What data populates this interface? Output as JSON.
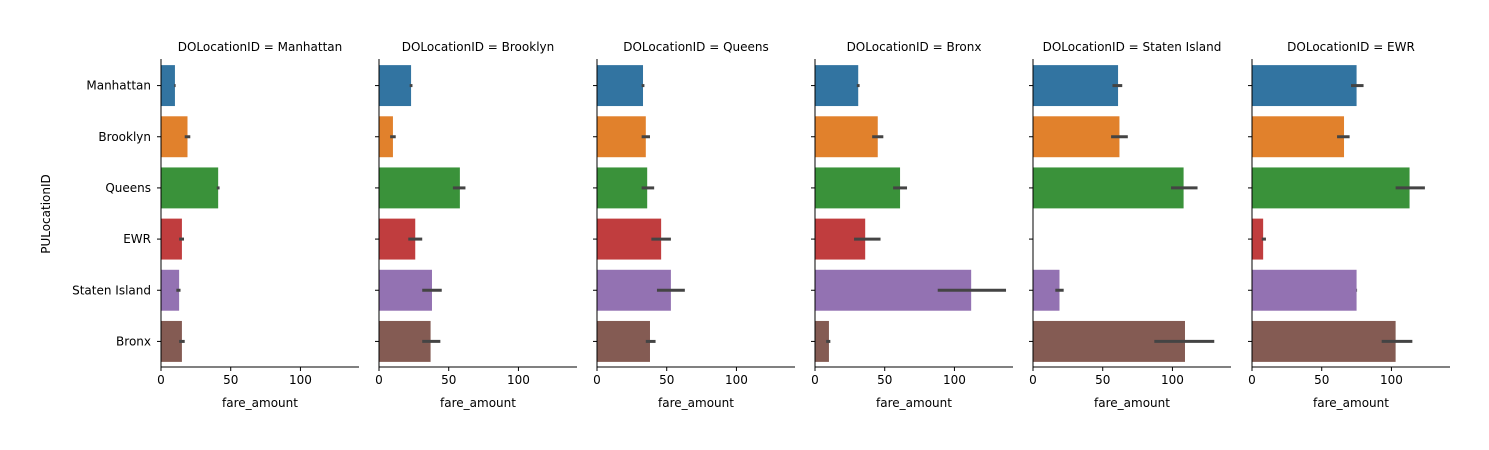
{
  "chart_data": {
    "type": "bar",
    "orientation": "horizontal",
    "facet_by": "DOLocationID",
    "xlabel": "fare_amount",
    "ylabel": "PULocationID",
    "xlim": [
      0,
      142
    ],
    "xticks": [
      0,
      50,
      100
    ],
    "grid": false,
    "categories": [
      "Manhattan",
      "Brooklyn",
      "Queens",
      "EWR",
      "Staten Island",
      "Bronx"
    ],
    "colors": [
      "#3274a1",
      "#e1812c",
      "#3a923a",
      "#c03d3e",
      "#9372b2",
      "#845b53"
    ],
    "error_color": "#444444",
    "panels": [
      {
        "title": "DOLocationID = Manhattan",
        "values": [
          10,
          19,
          41,
          15,
          13,
          15
        ],
        "ci": [
          [
            9.5,
            10.5
          ],
          [
            17,
            21
          ],
          [
            40,
            42
          ],
          [
            13,
            16.5
          ],
          [
            11,
            14
          ],
          [
            13,
            17
          ]
        ]
      },
      {
        "title": "DOLocationID = Brooklyn",
        "values": [
          23,
          10,
          58,
          26,
          38,
          37
        ],
        "ci": [
          [
            22,
            24
          ],
          [
            8,
            12
          ],
          [
            53,
            62
          ],
          [
            21,
            31
          ],
          [
            31,
            45
          ],
          [
            31,
            44
          ]
        ]
      },
      {
        "title": "DOLocationID = Queens",
        "values": [
          33,
          35,
          36,
          46,
          53,
          38
        ],
        "ci": [
          [
            32,
            34
          ],
          [
            32,
            38
          ],
          [
            32,
            41
          ],
          [
            39,
            53
          ],
          [
            43,
            63
          ],
          [
            35,
            42
          ]
        ]
      },
      {
        "title": "DOLocationID = Bronx",
        "values": [
          31,
          45,
          61,
          36,
          112,
          10
        ],
        "ci": [
          [
            30,
            32
          ],
          [
            41,
            49
          ],
          [
            56,
            66
          ],
          [
            28,
            47
          ],
          [
            88,
            137
          ],
          [
            8,
            11
          ]
        ]
      },
      {
        "title": "DOLocationID = Staten Island",
        "values": [
          61,
          62,
          108,
          null,
          19,
          109
        ],
        "ci": [
          [
            57,
            64
          ],
          [
            56,
            68
          ],
          [
            99,
            118
          ],
          null,
          [
            16,
            22
          ],
          [
            87,
            130
          ]
        ]
      },
      {
        "title": "DOLocationID = EWR",
        "values": [
          75,
          66,
          113,
          8,
          75,
          103
        ],
        "ci": [
          [
            71,
            80
          ],
          [
            61,
            70
          ],
          [
            103,
            124
          ],
          [
            7,
            10
          ],
          [
            75,
            75
          ],
          [
            93,
            115
          ]
        ]
      }
    ]
  }
}
